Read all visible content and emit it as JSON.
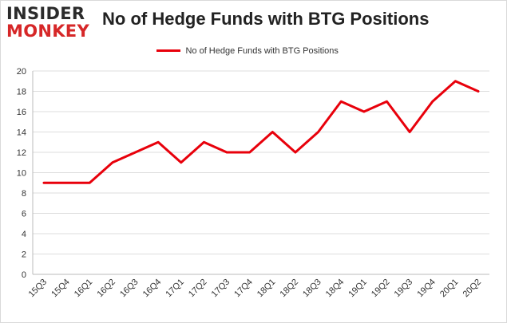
{
  "logo": {
    "line1": "INSIDER",
    "line2": "MONKEY"
  },
  "chart_data": {
    "type": "line",
    "title": "No of Hedge Funds with BTG Positions",
    "xlabel": "",
    "ylabel": "",
    "categories": [
      "15Q3",
      "15Q4",
      "16Q1",
      "16Q2",
      "16Q3",
      "16Q4",
      "17Q1",
      "17Q2",
      "17Q3",
      "17Q4",
      "18Q1",
      "18Q2",
      "18Q3",
      "18Q4",
      "19Q1",
      "19Q2",
      "19Q3",
      "19Q4",
      "20Q1",
      "20Q2"
    ],
    "series": [
      {
        "name": "No of Hedge Funds with BTG Positions",
        "values": [
          9,
          9,
          9,
          11,
          12,
          13,
          11,
          13,
          12,
          12,
          14,
          12,
          14,
          17,
          16,
          17,
          14,
          17,
          19,
          18
        ]
      }
    ],
    "ylim": [
      0,
      20
    ],
    "yticks": [
      0,
      2,
      4,
      6,
      8,
      10,
      12,
      14,
      16,
      18,
      20
    ],
    "grid": true,
    "legend": "top-center",
    "line_color": "#e8000b"
  }
}
